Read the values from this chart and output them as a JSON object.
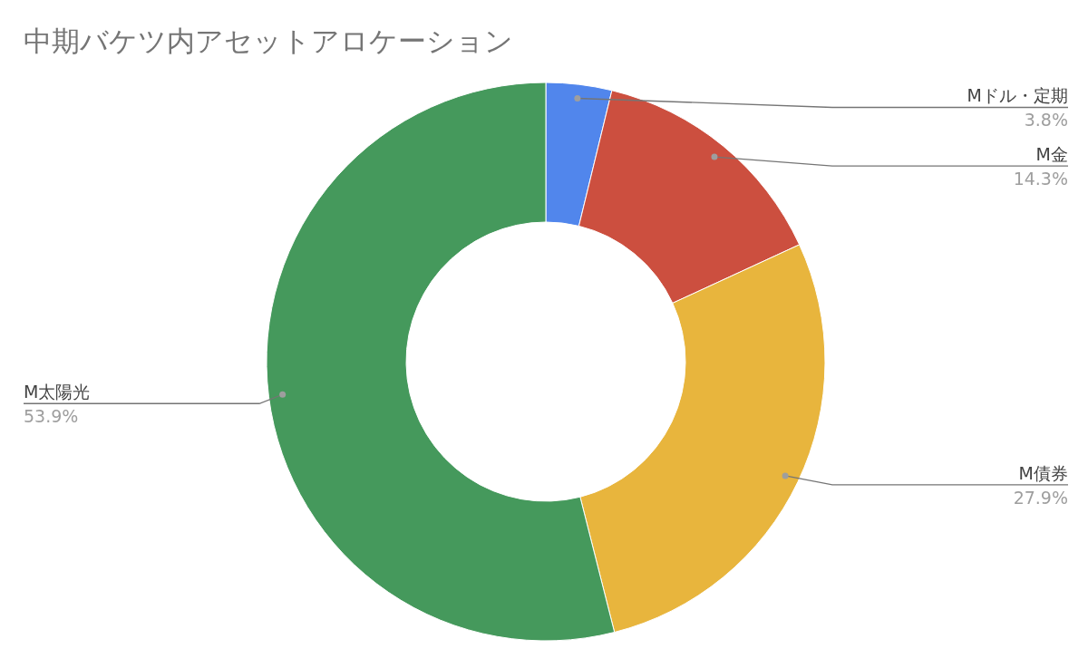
{
  "chart_data": {
    "type": "donut",
    "title": "中期バケツ内アセットアロケーション",
    "categories": [
      "Mドル・定期",
      "M金",
      "M債券",
      "M太陽光"
    ],
    "values": [
      3.8,
      14.3,
      27.9,
      53.9
    ],
    "colors": [
      "#5186ec",
      "#cc4f3f",
      "#e8b53d",
      "#45995c"
    ],
    "value_labels": [
      "3.8%",
      "14.3%",
      "27.9%",
      "53.9%"
    ]
  }
}
